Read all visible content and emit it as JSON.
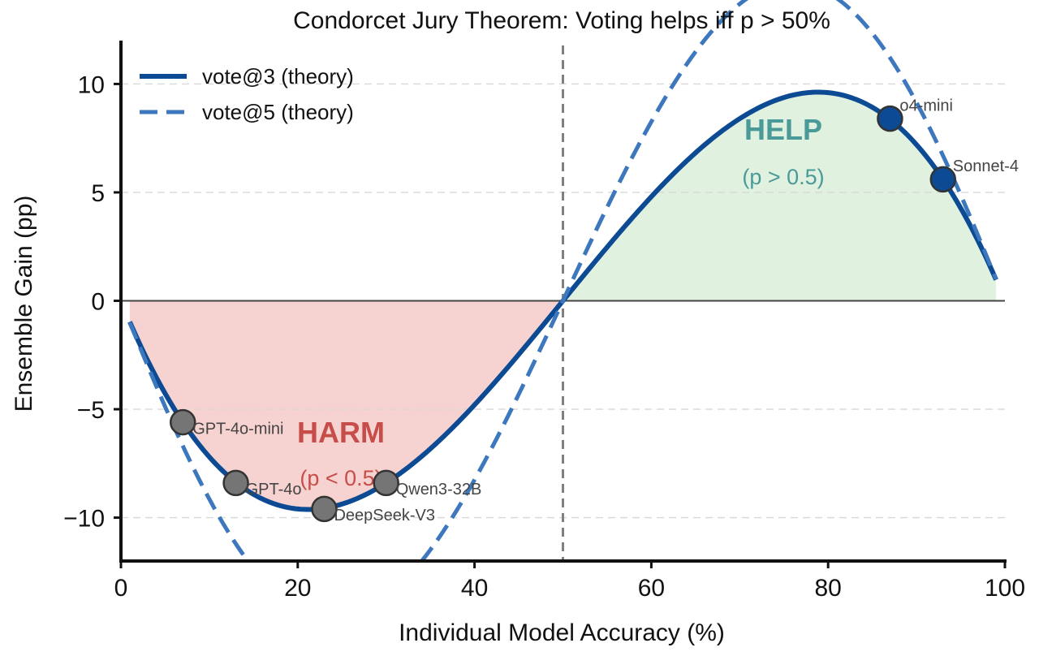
{
  "chart_data": {
    "type": "line",
    "title": "Condorcet Jury Theorem: Voting helps iff p > 50%",
    "xlabel": "Individual Model Accuracy (%)",
    "ylabel": "Ensemble Gain (pp)",
    "xlim": [
      0,
      100
    ],
    "ylim": [
      -12,
      12
    ],
    "x_ticks": [
      0,
      20,
      40,
      60,
      80,
      100
    ],
    "x_tick_labels": [
      "0",
      "20",
      "40",
      "60",
      "80",
      "100"
    ],
    "y_ticks": [
      -10,
      -5,
      0,
      5,
      10
    ],
    "y_tick_labels": [
      "−10",
      "−5",
      "0",
      "5",
      "10"
    ],
    "grid": "horizontal dashed",
    "legend_position": "top-left",
    "threshold_x": 50,
    "series": [
      {
        "name": "vote@3 (theory)",
        "style": "solid",
        "color": "#0d4a94",
        "formula": "100*((3p^2-2p^3)-p)",
        "x_range": [
          1,
          99
        ]
      },
      {
        "name": "vote@5 (theory)",
        "style": "dashed",
        "color": "#3d77bd",
        "formula": "100*((10p^3-15p^4+6p^5)-p)",
        "x_range": [
          1,
          99
        ]
      }
    ],
    "regions": [
      {
        "label": "HARM",
        "sublabel": "(p < 0.5)",
        "color": "#f6d3d0",
        "text_color": "#c74d4a"
      },
      {
        "label": "HELP",
        "sublabel": "(p > 0.5)",
        "color": "#e0f1df",
        "text_color": "#4a9a9a"
      }
    ],
    "points": [
      {
        "name": "GPT-4o-mini",
        "x": 7,
        "y": -5.6,
        "group": "harm"
      },
      {
        "name": "GPT-4o",
        "x": 13,
        "y": -8.4,
        "group": "harm"
      },
      {
        "name": "DeepSeek-V3",
        "x": 23,
        "y": -9.6,
        "group": "harm"
      },
      {
        "name": "Qwen3-32B",
        "x": 30,
        "y": -8.4,
        "group": "harm"
      },
      {
        "name": "o4-mini",
        "x": 87,
        "y": 8.4,
        "group": "help"
      },
      {
        "name": "Sonnet-4",
        "x": 93,
        "y": 5.6,
        "group": "help"
      }
    ],
    "colors": {
      "harm_point": "#757575",
      "help_point": "#0d4a94",
      "threshold": "#808080"
    }
  }
}
